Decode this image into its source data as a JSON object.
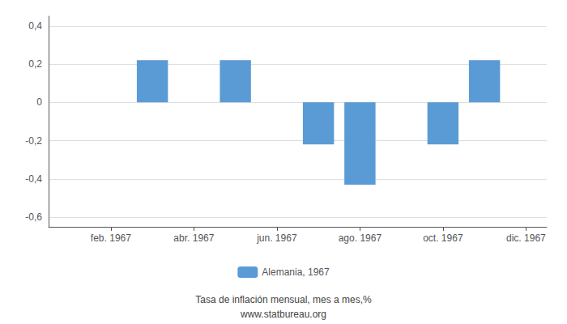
{
  "chart_data": {
    "type": "bar",
    "x": [
      3,
      5,
      7,
      8,
      10,
      11
    ],
    "series": [
      {
        "name": "Alemania, 1967",
        "color": "#5B9BD5",
        "values": [
          0.22,
          0.22,
          -0.22,
          -0.43,
          -0.22,
          0.22
        ]
      }
    ],
    "xlim": [
      0.5,
      12.5
    ],
    "xticks": [
      {
        "value": 2,
        "label": "feb. 1967"
      },
      {
        "value": 4,
        "label": "abr. 1967"
      },
      {
        "value": 6,
        "label": "jun. 1967"
      },
      {
        "value": 8,
        "label": "ago. 1967"
      },
      {
        "value": 10,
        "label": "oct. 1967"
      },
      {
        "value": 12,
        "label": "dic. 1967"
      }
    ],
    "ylim": [
      -0.65,
      0.45
    ],
    "yticks": [
      {
        "value": -0.6,
        "label": "-0,6"
      },
      {
        "value": -0.4,
        "label": "-0,4"
      },
      {
        "value": -0.2,
        "label": "-0,2"
      },
      0,
      {
        "value": 0.2,
        "label": "0,2"
      },
      {
        "value": 0.4,
        "label": "0,4"
      }
    ],
    "grid": true,
    "legend": "bottom",
    "annotations": [
      "Tasa de inflación mensual, mes a mes,%",
      "www.statbureau.org"
    ]
  }
}
